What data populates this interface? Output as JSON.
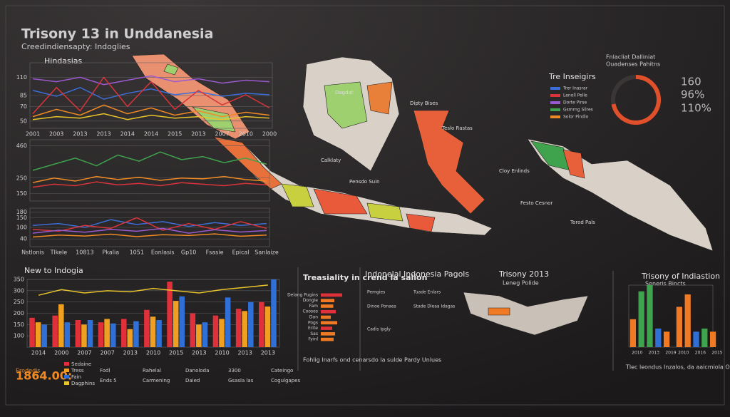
{
  "header": {
    "title": "Trisony 13 in Unddanesia",
    "subtitle": "Creedindiensapty: Indoglies"
  },
  "chart_data": [
    {
      "type": "line",
      "title": "Hindasias",
      "categories": [
        "2001",
        "2003",
        "2013",
        "2013",
        "2014",
        "2014",
        "2015",
        "2013",
        "2007",
        "2010",
        "2000"
      ],
      "ylim": [
        40,
        130
      ],
      "yticks": [
        50,
        70,
        85,
        110
      ],
      "grid": true,
      "series": [
        {
          "color": "#9b59d0",
          "values": [
            108,
            104,
            110,
            100,
            106,
            112,
            104,
            108,
            102,
            106,
            104
          ]
        },
        {
          "color": "#3b6fd8",
          "values": [
            92,
            84,
            96,
            80,
            88,
            94,
            86,
            90,
            84,
            88,
            86
          ]
        },
        {
          "color": "#d9343a",
          "values": [
            60,
            96,
            64,
            110,
            70,
            104,
            66,
            92,
            72,
            86,
            68
          ]
        },
        {
          "color": "#f08a24",
          "values": [
            56,
            66,
            58,
            72,
            60,
            68,
            58,
            64,
            56,
            62,
            58
          ]
        },
        {
          "color": "#e8c42a",
          "values": [
            52,
            56,
            54,
            60,
            52,
            58,
            54,
            56,
            52,
            56,
            54
          ]
        }
      ]
    },
    {
      "type": "line",
      "ylim": [
        100,
        500
      ],
      "yticks": [
        150,
        250,
        460
      ],
      "grid": true,
      "series": [
        {
          "color": "#3fa34d",
          "values": [
            300,
            340,
            380,
            330,
            400,
            360,
            420,
            370,
            390,
            350,
            380,
            340
          ]
        },
        {
          "color": "#f08a24",
          "values": [
            220,
            250,
            230,
            260,
            240,
            255,
            235,
            250,
            245,
            260,
            240,
            230
          ]
        },
        {
          "color": "#d9343a",
          "values": [
            190,
            210,
            200,
            225,
            205,
            215,
            200,
            220,
            210,
            200,
            215,
            205
          ]
        }
      ]
    },
    {
      "type": "line",
      "ylim": [
        0,
        200
      ],
      "yticks": [
        40,
        100,
        150,
        180
      ],
      "grid": true,
      "categories": [
        "Nstlonis",
        "Tlkele",
        "10813",
        "Pkalia",
        "1051",
        "Eonlasis",
        "Gp10",
        "Fsasie",
        "Epical",
        "Sanlaize"
      ],
      "series": [
        {
          "color": "#3b6fd8",
          "values": [
            110,
            120,
            100,
            140,
            115,
            130,
            105,
            125,
            110,
            120
          ]
        },
        {
          "color": "#d9343a",
          "values": [
            90,
            80,
            110,
            95,
            150,
            85,
            120,
            90,
            130,
            95
          ]
        },
        {
          "color": "#9b59d0",
          "values": [
            70,
            85,
            75,
            90,
            80,
            95,
            70,
            88,
            76,
            84
          ]
        },
        {
          "color": "#f08a24",
          "values": [
            50,
            60,
            55,
            65,
            52,
            62,
            58,
            66,
            54,
            60
          ]
        }
      ]
    },
    {
      "type": "bar",
      "title": "New to Indogia",
      "categories": [
        "2014",
        "2000",
        "2007",
        "2007",
        "2013",
        "2010",
        "2015",
        "2013",
        "2010",
        "2013",
        "2013"
      ],
      "ylim": [
        50,
        350
      ],
      "yticks": [
        100,
        150,
        200,
        250,
        300,
        350
      ],
      "grid": true,
      "series": [
        {
          "name": "Sedaine",
          "color": "#e0303a",
          "values": [
            180,
            190,
            170,
            160,
            175,
            215,
            340,
            200,
            190,
            220,
            250
          ]
        },
        {
          "name": "Tress",
          "color": "#f0a020",
          "values": [
            160,
            240,
            150,
            175,
            130,
            185,
            255,
            150,
            175,
            210,
            230
          ]
        },
        {
          "name": "Fain",
          "color": "#2f6fd6",
          "values": [
            150,
            160,
            170,
            155,
            165,
            170,
            275,
            160,
            270,
            250,
            350
          ]
        },
        {
          "name": "Dagphins",
          "type": "line",
          "color": "#e8c42a",
          "values": [
            280,
            305,
            290,
            300,
            295,
            310,
            300,
            290,
            305,
            315,
            325
          ]
        }
      ]
    },
    {
      "type": "bar",
      "horizontal": true,
      "title": "Treasiality in crend la salion",
      "xlim": [
        0,
        100
      ],
      "color": "#f07a24",
      "categories": [
        "Delang Pugins",
        "Dongie",
        "Fam",
        "Cooses",
        "Dan",
        "Pogs",
        "Erite",
        "Sas",
        "Fyinl"
      ],
      "values": [
        60,
        38,
        35,
        42,
        28,
        46,
        32,
        40,
        36
      ]
    },
    {
      "type": "pie",
      "colors": [
        "#e0502a",
        "#3a3636"
      ],
      "values": [
        72,
        28
      ]
    },
    {
      "type": "bar",
      "title": "Trisony of Indiastion",
      "subtitle": "Seneris Bincts",
      "ylim": [
        0,
        100
      ],
      "categories": [
        "2010",
        null,
        "2013",
        null,
        "2019",
        "2010",
        null,
        "2016",
        null,
        "2015"
      ],
      "colors": [
        "#f07a24",
        "#3fa34d",
        "#3fa34d",
        "#2f6fd6",
        "#f07a24",
        "#f07a24",
        "#f07a24",
        "#2f6fd6",
        "#3fa34d",
        "#f07a24"
      ],
      "values": [
        45,
        90,
        100,
        30,
        25,
        65,
        85,
        25,
        30,
        25
      ]
    }
  ],
  "kpis": [
    "160",
    "96%",
    "110%"
  ],
  "kpi_header": [
    "Fnlacliat Dalliniat",
    "Ouadenses Pahitns"
  ],
  "insights": {
    "title": "Tre Inseigirs",
    "items": [
      {
        "label": "Trer Inasrar",
        "color": "#3b6fd8"
      },
      {
        "label": "Lenoll Pelle",
        "color": "#d9343a"
      },
      {
        "label": "Dorte Pirse",
        "color": "#9b59d0"
      },
      {
        "label": "Gsmrng Silres",
        "color": "#3fa34d"
      },
      {
        "label": "Solor Pindio",
        "color": "#f08a24"
      }
    ]
  },
  "map": {
    "labels": [
      "Dagdat",
      "Calklaty",
      "Pensdo Suin",
      "Dipty Bises",
      "Teslo Rastas",
      "Cloy Enlinds",
      "Festo Cesnor",
      "Torod Pals"
    ]
  },
  "footer": {
    "kpi_label": "Erodedis",
    "kpi": "1864.00:",
    "notes": [
      "Fodl",
      "Ends 5",
      "Rahelal",
      "Carmening",
      "Danoloda",
      "Daied",
      "3300",
      "Gsasla las",
      "Cateingo",
      "Cogulgapes"
    ]
  },
  "pagols": {
    "title": "Indonelal Indonesia Pagols",
    "items": [
      "Pemgies",
      "Tuade Enlars",
      "Dinoe Ponaes",
      "Stade Dleaa Idagas",
      "Cadis Ipgly"
    ]
  },
  "small_map": {
    "title": "Trisony 2013",
    "subtitle": "Leneg Polide"
  },
  "bottom_note": "Fohlig Inarfs ond cenarsdo la sulde Pardy Unlues",
  "right_note": "Tlec leondus Inzalos, da aaicmiola Opsing"
}
